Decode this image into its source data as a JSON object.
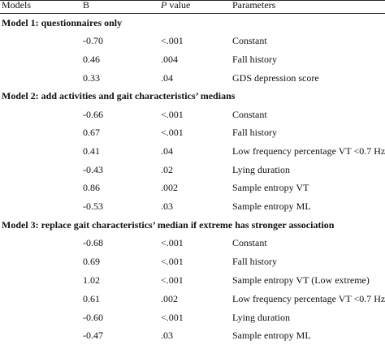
{
  "header": {
    "models": "Models",
    "b": "B",
    "p_letter": "P",
    "p_rest": " value",
    "parameters": "Parameters"
  },
  "sections": [
    {
      "title": "Model 1: questionnaires only",
      "rows": [
        {
          "b": "-0.70",
          "p": "<.001",
          "param": "Constant"
        },
        {
          "b": "0.46",
          "p": ".004",
          "param": "Fall history"
        },
        {
          "b": "0.33",
          "p": ".04",
          "param": "GDS depression score"
        }
      ]
    },
    {
      "title": "Model 2: add activities and gait characteristics’ medians",
      "rows": [
        {
          "b": "-0.66",
          "p": "<.001",
          "param": "Constant"
        },
        {
          "b": "0.67",
          "p": "<.001",
          "param": "Fall history"
        },
        {
          "b": "0.41",
          "p": ".04",
          "param": "Low frequency percentage VT <0.7 Hz"
        },
        {
          "b": "-0.43",
          "p": ".02",
          "param": "Lying duration"
        },
        {
          "b": "0.86",
          "p": ".002",
          "param": "Sample entropy VT"
        },
        {
          "b": "-0.53",
          "p": ".03",
          "param": "Sample entropy ML"
        }
      ]
    },
    {
      "title": "Model 3: replace gait characteristics’ median if extreme has stronger association",
      "rows": [
        {
          "b": "-0.68",
          "p": "<.001",
          "param": "Constant"
        },
        {
          "b": "0.69",
          "p": "<.001",
          "param": "Fall history"
        },
        {
          "b": "1.02",
          "p": "<.001",
          "param": "Sample entropy VT (Low extreme)"
        },
        {
          "b": "0.61",
          "p": ".002",
          "param": "Low frequency percentage VT <0.7 Hz"
        },
        {
          "b": "-0.60",
          "p": "<.001",
          "param": "Lying duration"
        },
        {
          "b": "-0.47",
          "p": ".03",
          "param": "Sample entropy ML"
        }
      ]
    }
  ]
}
